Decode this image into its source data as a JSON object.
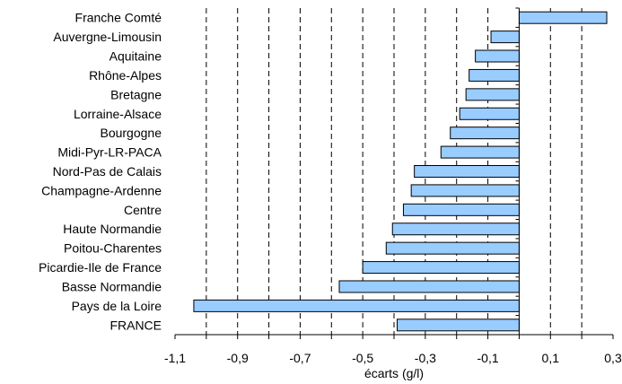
{
  "chart_data": {
    "type": "bar",
    "orientation": "horizontal",
    "categories": [
      "Franche Comté",
      "Auvergne-Limousin",
      "Aquitaine",
      "Rhône-Alpes",
      "Bretagne",
      "Lorraine-Alsace",
      "Bourgogne",
      "Midi-Pyr-LR-PACA",
      "Nord-Pas de Calais",
      "Champagne-Ardenne",
      "Centre",
      "Haute Normandie",
      "Poitou-Charentes",
      "Picardie-Ile de France",
      "Basse Normandie",
      "Pays de la Loire",
      "FRANCE"
    ],
    "values": [
      0.28,
      -0.09,
      -0.14,
      -0.16,
      -0.17,
      -0.19,
      -0.22,
      -0.25,
      -0.335,
      -0.345,
      -0.37,
      -0.405,
      -0.425,
      -0.5,
      -0.575,
      -1.04,
      -0.39
    ],
    "title": "",
    "xlabel": "écarts (g/l)",
    "ylabel": "",
    "xlim": [
      -1.1,
      0.3
    ],
    "xticks": [
      "-1,1",
      "-0,9",
      "-0,7",
      "-0,5",
      "-0,3",
      "-0,1",
      "0,1",
      "0,3"
    ],
    "xtick_values": [
      -1.1,
      -0.9,
      -0.7,
      -0.5,
      -0.3,
      -0.1,
      0.1,
      0.3
    ],
    "grid": "vertical dashed",
    "legend": "none",
    "bar_color": "#99ccff",
    "bar_edge_color": "#000000"
  }
}
